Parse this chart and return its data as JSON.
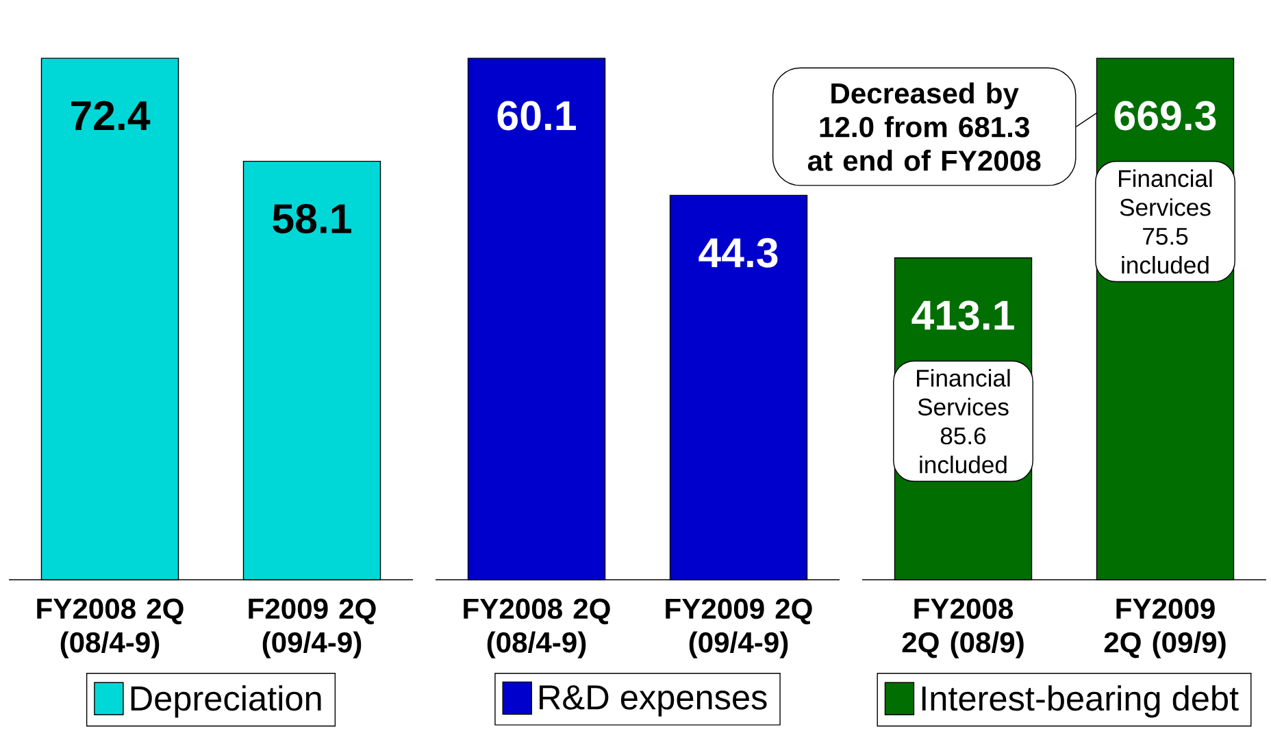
{
  "chart_data": [
    {
      "type": "bar",
      "categories": [
        "FY2008 2Q (08/4-9)",
        "F2009 2Q (09/4-9)"
      ],
      "series": [
        {
          "name": "Depreciation",
          "color": "#00d8d8",
          "values": [
            72.4,
            58.1
          ]
        }
      ],
      "data_labels": true,
      "legend": "bottom"
    },
    {
      "type": "bar",
      "categories": [
        "FY2008 2Q (08/4-9)",
        "FY2009 2Q (09/4-9)"
      ],
      "series": [
        {
          "name": "R&D expenses",
          "color": "#0000cc",
          "values": [
            60.1,
            44.3
          ]
        }
      ],
      "data_labels": true,
      "legend": "bottom"
    },
    {
      "type": "bar",
      "categories": [
        "FY2008 2Q (08/9)",
        "FY2009 2Q (09/9)"
      ],
      "series": [
        {
          "name": "Interest-bearing debt",
          "color": "#006e00",
          "values": [
            413.1,
            669.3
          ]
        }
      ],
      "data_labels": true,
      "legend": "bottom",
      "annotations": [
        "Financial Services 85.6 included",
        "Financial Services 75.5 included",
        "Decreased by 12.0 from 681.3 at end of FY2008"
      ]
    }
  ]
}
